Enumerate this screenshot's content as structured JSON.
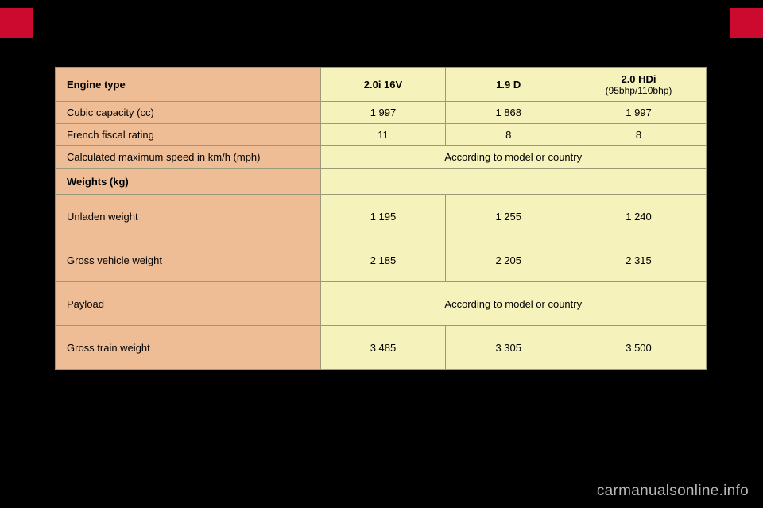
{
  "table": {
    "header": {
      "label": "Engine type",
      "cols": [
        {
          "name": "2.0i 16V",
          "sub": ""
        },
        {
          "name": "1.9 D",
          "sub": ""
        },
        {
          "name": "2.0 HDi",
          "sub": "(95bhp/110bhp)"
        }
      ]
    },
    "rows": {
      "cubic": {
        "label": "Cubic capacity (cc)",
        "c1": "1 997",
        "c2": "1 868",
        "c3": "1 997"
      },
      "fiscal": {
        "label": "French fiscal rating",
        "c1": "11",
        "c2": "8",
        "c3": "8"
      },
      "speed": {
        "label": "Calculated maximum speed in km/h (mph)",
        "span": "According to model or country"
      },
      "weights": {
        "label": "Weights (kg)"
      },
      "unladen": {
        "label": "Unladen weight",
        "c1": "1 195",
        "c2": "1 255",
        "c3": "1 240"
      },
      "gvw": {
        "label": "Gross vehicle weight",
        "c1": "2 185",
        "c2": "2 205",
        "c3": "2 315"
      },
      "payload": {
        "label": "Payload",
        "span": "According to model or country"
      },
      "gtw": {
        "label": "Gross train weight",
        "c1": "3 485",
        "c2": "3 305",
        "c3": "3 500"
      }
    }
  },
  "watermark": "carmanualsonline.info",
  "colors": {
    "page_bg": "#000000",
    "tab": "#cc0a2f",
    "peach": "#eebd96",
    "cream": "#f6f2bb",
    "border": "#9a9a7a",
    "watermark": "#b8b8b8"
  }
}
